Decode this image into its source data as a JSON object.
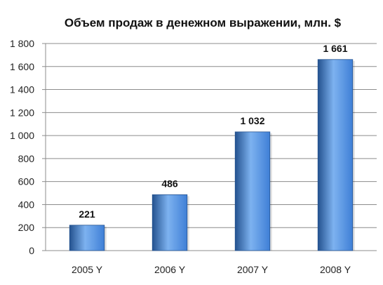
{
  "chart_data": {
    "type": "bar",
    "title": "Объем продаж в денежном выражении, млн. $",
    "categories": [
      "2005 Y",
      "2006 Y",
      "2007 Y",
      "2008 Y"
    ],
    "values": [
      221,
      486,
      1032,
      1661
    ],
    "value_labels": [
      "221",
      "486",
      "1 032",
      "1 661"
    ],
    "yticks": [
      0,
      200,
      400,
      600,
      800,
      1000,
      1200,
      1400,
      1600,
      1800
    ],
    "ytick_labels": [
      "0",
      "200",
      "400",
      "600",
      "800",
      "1 000",
      "1 200",
      "1 400",
      "1 600",
      "1 800"
    ],
    "ylim": [
      0,
      1800
    ],
    "grid": true,
    "legend": "none",
    "bar_color": "#3f7fd6",
    "bar_color_dark": "#24528f",
    "bar_color_light": "#7db2f0"
  }
}
